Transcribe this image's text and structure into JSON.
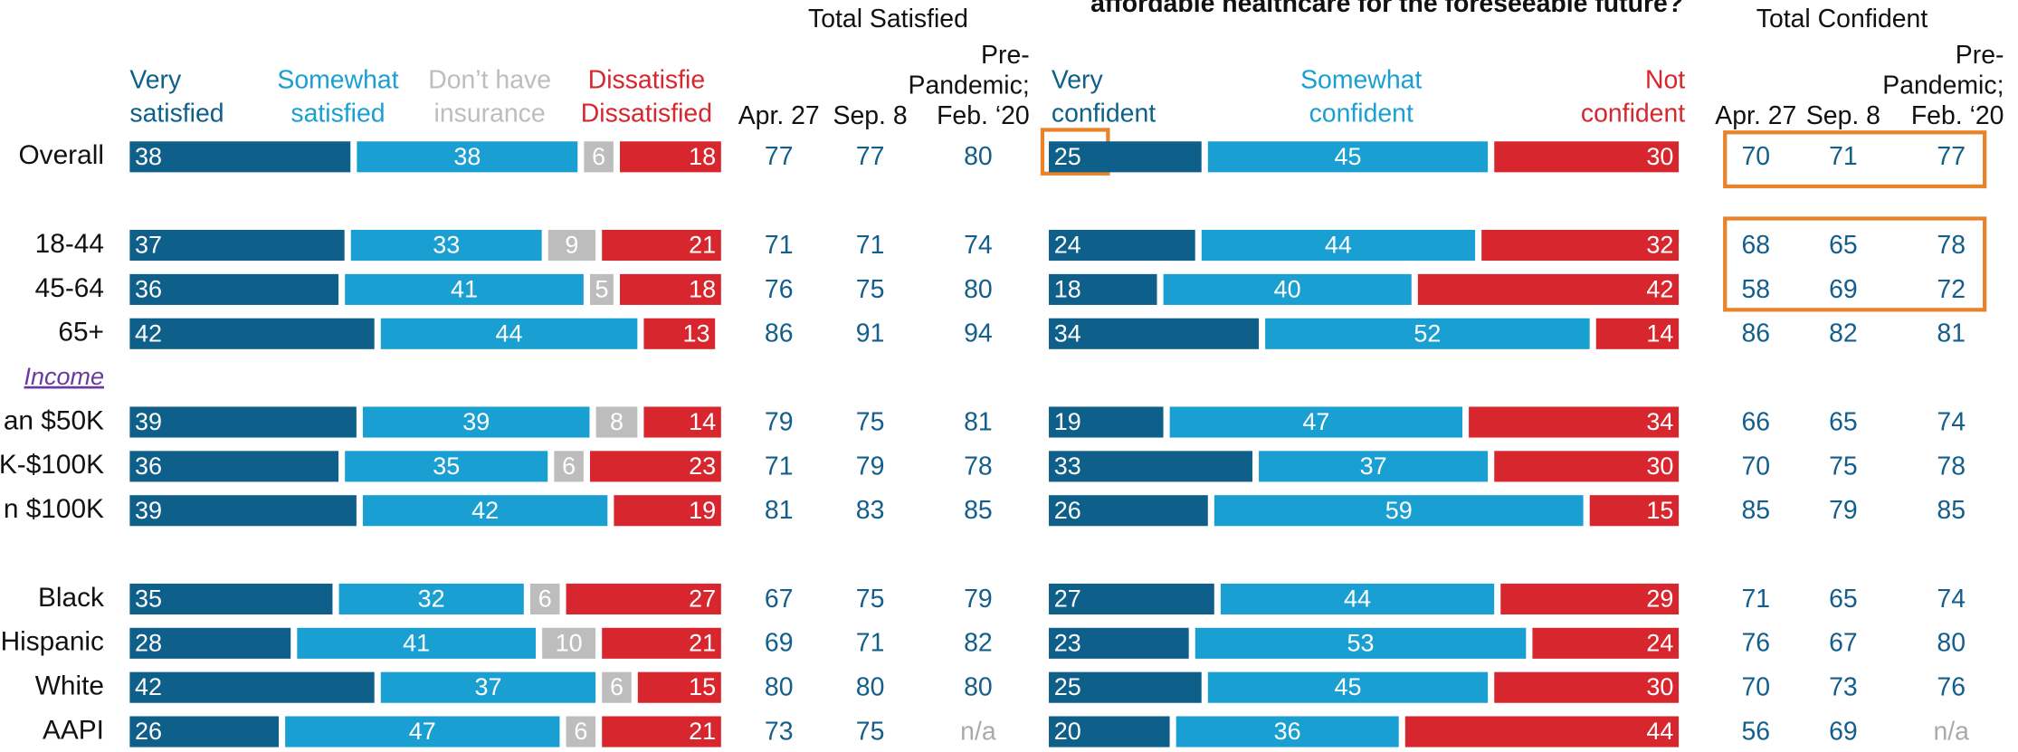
{
  "chart_data": [
    {
      "type": "bar",
      "stacked": true,
      "categories": [
        "Overall",
        null,
        "18-44",
        "45-64",
        "65+",
        "Income",
        "an $50K",
        "K-$100K",
        "n $100K",
        null,
        "Black",
        "Hispanic",
        "White",
        "AAPI"
      ],
      "xlim": [
        0,
        100
      ],
      "series": [
        {
          "name": "Very satisfied",
          "color": "#0e5f8a",
          "values": [
            38,
            null,
            37,
            36,
            42,
            null,
            39,
            36,
            39,
            null,
            35,
            28,
            42,
            26
          ]
        },
        {
          "name": "Somewhat satisfied",
          "color": "#1a9fd2",
          "values": [
            38,
            null,
            33,
            41,
            44,
            null,
            39,
            35,
            42,
            null,
            32,
            41,
            37,
            47
          ]
        },
        {
          "name": "Don’t have insurance",
          "color": "#bdbdbd",
          "values": [
            6,
            null,
            9,
            5,
            null,
            null,
            8,
            6,
            null,
            null,
            6,
            10,
            6,
            6
          ]
        },
        {
          "name": "Dissatisfied",
          "color": "#d7262e",
          "values": [
            18,
            null,
            21,
            18,
            13,
            null,
            14,
            23,
            19,
            null,
            27,
            21,
            15,
            21
          ]
        }
      ],
      "table_title": "Total Satisfied",
      "columns": [
        [
          "Apr. 27"
        ],
        [
          "Sep. 8"
        ],
        [
          "Pre-",
          "Pandemic;",
          "Feb. ‘20"
        ]
      ],
      "table": [
        [
          77,
          77,
          80
        ],
        null,
        [
          71,
          71,
          74
        ],
        [
          76,
          75,
          80
        ],
        [
          86,
          91,
          94
        ],
        null,
        [
          79,
          75,
          81
        ],
        [
          71,
          79,
          78
        ],
        [
          81,
          83,
          85
        ],
        null,
        [
          67,
          75,
          79
        ],
        [
          69,
          71,
          82
        ],
        [
          80,
          80,
          80
        ],
        [
          73,
          75,
          "n/a"
        ]
      ]
    },
    {
      "type": "bar",
      "stacked": true,
      "title": "affordable healthcare for the foreseeable future?",
      "xlim": [
        0,
        100
      ],
      "series": [
        {
          "name": "Very confident",
          "color": "#0e5f8a",
          "values": [
            25,
            null,
            24,
            18,
            34,
            null,
            19,
            33,
            26,
            null,
            27,
            23,
            25,
            20
          ]
        },
        {
          "name": "Somewhat confident",
          "color": "#1a9fd2",
          "values": [
            45,
            null,
            44,
            40,
            52,
            null,
            47,
            37,
            59,
            null,
            44,
            53,
            45,
            36
          ]
        },
        {
          "name": "Not confident",
          "color": "#d7262e",
          "values": [
            30,
            null,
            32,
            42,
            14,
            null,
            34,
            30,
            15,
            null,
            29,
            24,
            30,
            44
          ]
        }
      ],
      "table_title": "Total Confident",
      "columns": [
        [
          "Apr. 27"
        ],
        [
          "Sep. 8"
        ],
        [
          "Pre-",
          "Pandemic;",
          "Feb. ‘20"
        ]
      ],
      "table": [
        [
          70,
          71,
          77
        ],
        null,
        [
          68,
          65,
          78
        ],
        [
          58,
          69,
          72
        ],
        [
          86,
          82,
          81
        ],
        null,
        [
          66,
          65,
          74
        ],
        [
          70,
          75,
          78
        ],
        [
          85,
          79,
          85
        ],
        null,
        [
          71,
          65,
          74
        ],
        [
          76,
          67,
          80
        ],
        [
          70,
          73,
          76
        ],
        [
          56,
          69,
          "n/a"
        ]
      ]
    }
  ]
}
